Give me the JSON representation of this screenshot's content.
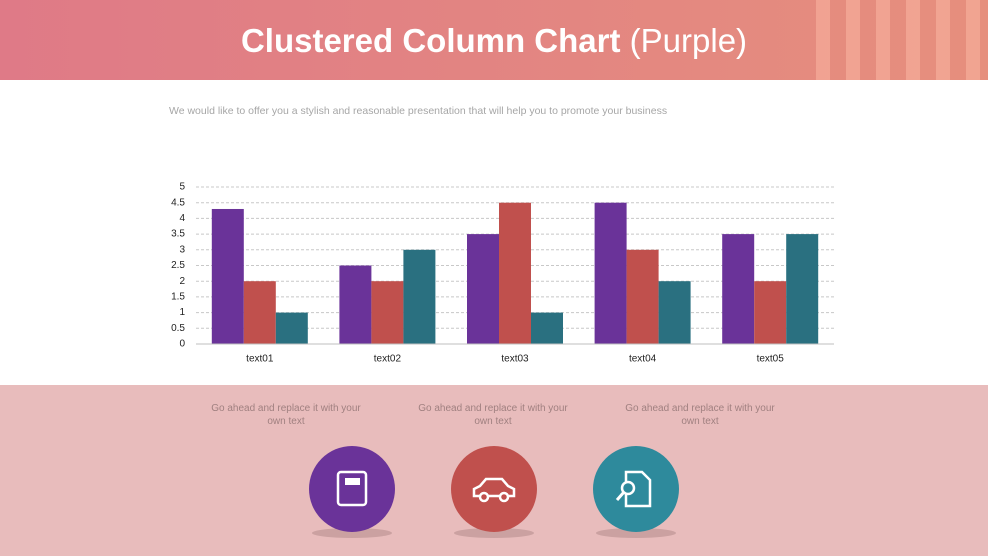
{
  "header": {
    "title": "Clustered Column Chart",
    "title_suffix": "(Purple)"
  },
  "description": "We would like to offer you a stylish and reasonable presentation that will help you to promote your business",
  "captions": [
    "Go ahead and replace it with your own text",
    "Go ahead and replace it with your own text",
    "Go ahead and replace it with your own text"
  ],
  "chart_data": {
    "type": "bar",
    "categories": [
      "text01",
      "text02",
      "text03",
      "text04",
      "text05"
    ],
    "series": [
      {
        "color": "#6a3399",
        "values": [
          4.3,
          2.5,
          3.5,
          4.5,
          3.5
        ]
      },
      {
        "color": "#c0504d",
        "values": [
          2,
          2,
          4.5,
          3,
          2
        ]
      },
      {
        "color": "#2a7080",
        "values": [
          1,
          3,
          1,
          2,
          3.5
        ]
      }
    ],
    "ylim": [
      0,
      5
    ],
    "yticks": [
      0,
      0.5,
      1,
      1.5,
      2,
      2.5,
      3,
      3.5,
      4,
      4.5,
      5
    ],
    "grid": true
  }
}
